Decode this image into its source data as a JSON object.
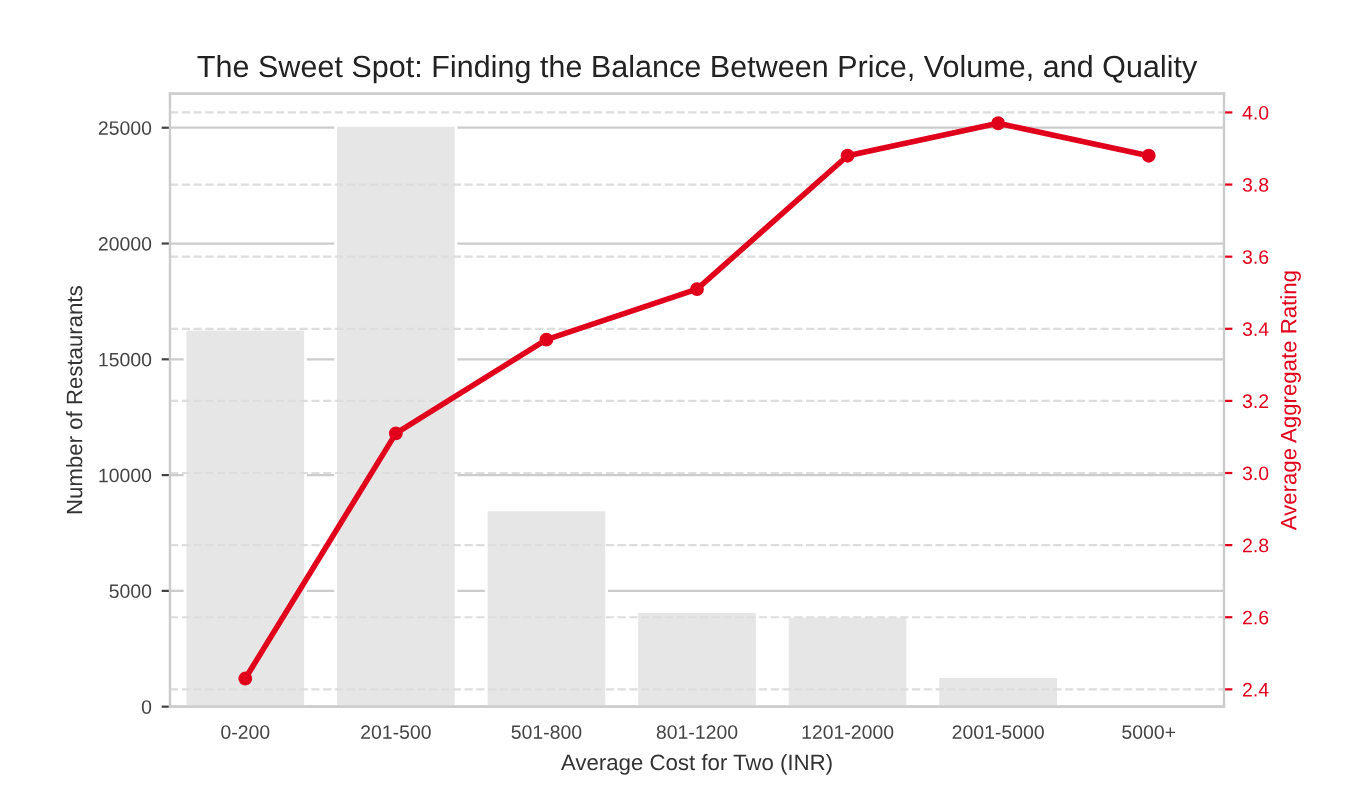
{
  "chart_data": {
    "type": "bar",
    "title": "The Sweet Spot: Finding the Balance Between Price, Volume, and Quality",
    "xlabel": "Average Cost for Two (INR)",
    "ylabel": "Number of Restaurants",
    "y2label": "Average Aggregate Rating",
    "categories": [
      "0-200",
      "201-500",
      "501-800",
      "801-1200",
      "1201-2000",
      "2001-5000",
      "5000+"
    ],
    "series": [
      {
        "color": "#e6e6e6",
        "values": [
          16300,
          25100,
          8500,
          4100,
          3900,
          1300,
          null
        ]
      },
      {
        "type": "line",
        "axis": "y2",
        "color": "#e0001b",
        "marker": "circle",
        "values": [
          2.43,
          3.11,
          3.37,
          3.51,
          3.88,
          3.97,
          3.88
        ]
      }
    ],
    "ylim": [
      0,
      26470
    ],
    "yticks": [
      0,
      5000,
      10000,
      15000,
      20000,
      25000
    ],
    "y2lim": [
      2.352,
      4.052
    ],
    "y2ticks": [
      2.4,
      2.6,
      2.8,
      {
        "value": 3,
        "label": "3.0"
      },
      3.2,
      3.4,
      3.6,
      3.8,
      {
        "value": 4,
        "label": "4.0"
      }
    ],
    "grid": true
  }
}
